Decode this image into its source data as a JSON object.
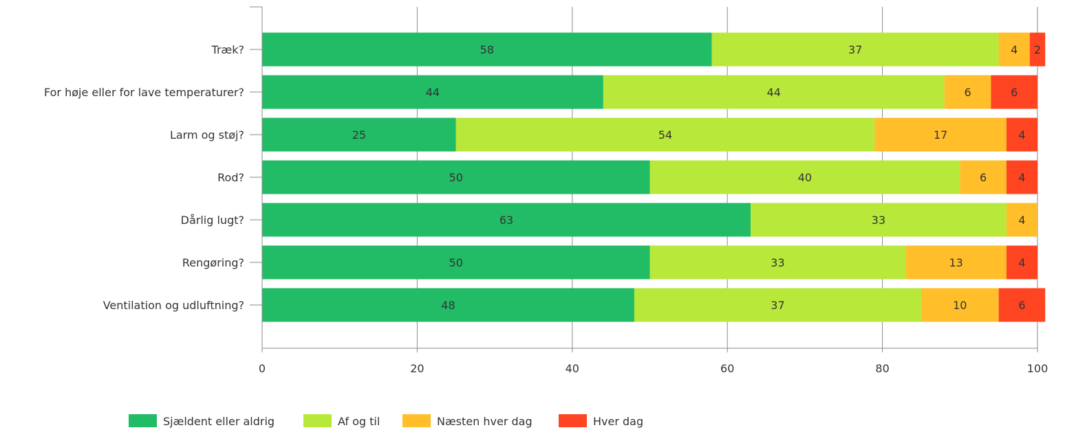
{
  "chart_data": {
    "type": "bar",
    "orientation": "horizontal",
    "stacked": true,
    "categories": [
      "Træk?",
      "For høje eller for lave temperaturer?",
      "Larm og støj?",
      "Rod?",
      "Dårlig lugt?",
      "Rengøring?",
      "Ventilation og udluftning?"
    ],
    "series": [
      {
        "name": "Sjældent eller aldrig",
        "color": "#22BB66",
        "values": [
          58,
          44,
          25,
          50,
          63,
          50,
          48
        ]
      },
      {
        "name": "Af og til",
        "color": "#B8E83A",
        "values": [
          37,
          44,
          54,
          40,
          33,
          33,
          37
        ]
      },
      {
        "name": "Næsten hver dag",
        "color": "#FFBE2A",
        "values": [
          4,
          6,
          17,
          6,
          4,
          13,
          10
        ]
      },
      {
        "name": "Hver dag",
        "color": "#FF4422",
        "values": [
          2,
          6,
          4,
          4,
          0,
          4,
          6
        ]
      }
    ],
    "xlim": [
      0,
      100
    ],
    "xticks": [
      0,
      20,
      40,
      60,
      80,
      100
    ],
    "grid": true,
    "legend_position": "bottom-left",
    "title": "",
    "xlabel": "",
    "ylabel": ""
  }
}
